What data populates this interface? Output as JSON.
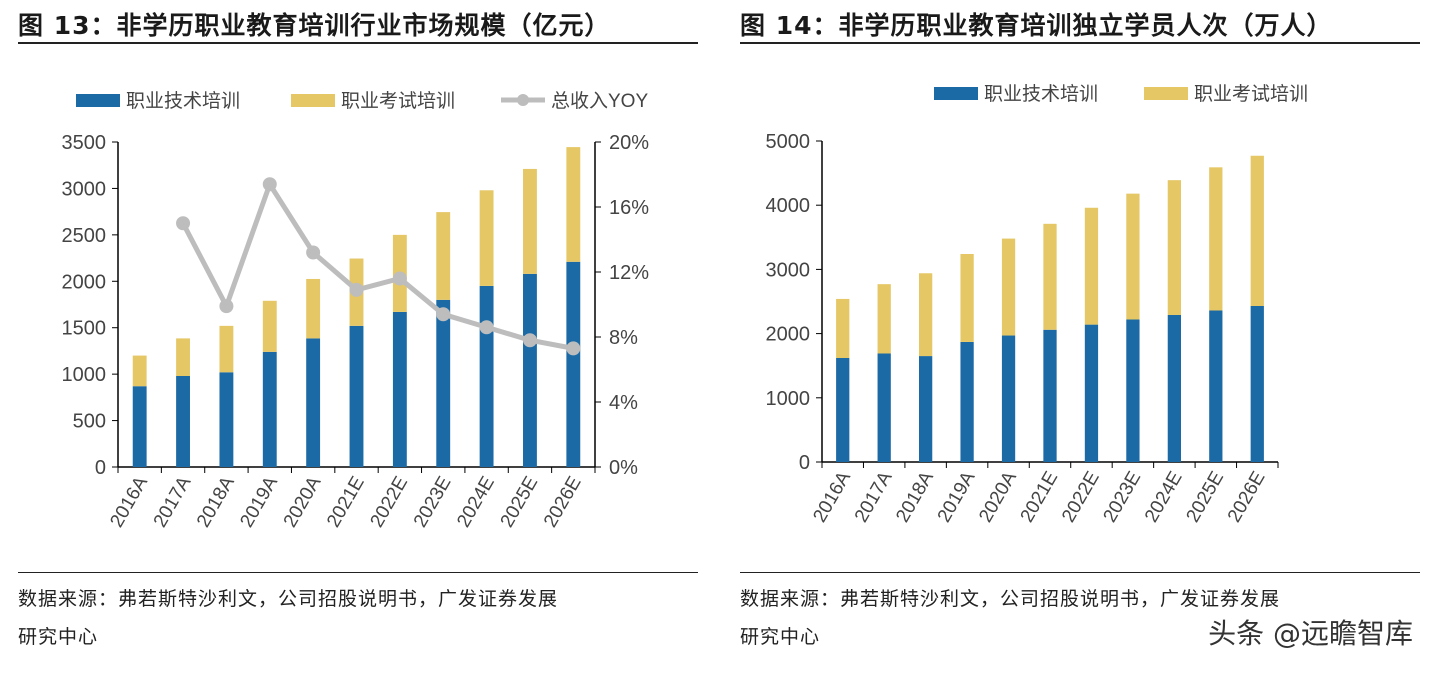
{
  "charts_meta": {
    "left_title": "图 13：非学历职业教育培训行业市场规模（亿元）",
    "right_title": "图 14：非学历职业教育培训独立学员人次（万人）",
    "source_line1": "数据来源：弗若斯特沙利文，公司招股说明书，广发证券发展",
    "source_line2": "研究中心",
    "watermark": "头条 @远瞻智库"
  },
  "colors": {
    "tech": "#1B6AA5",
    "exam": "#E5C766",
    "yoy": "#BDBDBD"
  },
  "chart_data": [
    {
      "type": "bar",
      "stacked": true,
      "title": "图 13：非学历职业教育培训行业市场规模（亿元）",
      "categories": [
        "2016A",
        "2017A",
        "2018A",
        "2019A",
        "2020A",
        "2021E",
        "2022E",
        "2023E",
        "2024E",
        "2025E",
        "2026E"
      ],
      "series": [
        {
          "name": "职业技术培训",
          "values": [
            870,
            980,
            1020,
            1240,
            1385,
            1520,
            1670,
            1800,
            1950,
            2080,
            2210
          ]
        },
        {
          "name": "职业考试培训",
          "values": [
            330,
            405,
            500,
            550,
            640,
            725,
            830,
            945,
            1030,
            1130,
            1235
          ]
        },
        {
          "name": "总收入YOY",
          "type": "line",
          "axis": "right",
          "values": [
            null,
            15.0,
            9.9,
            17.4,
            13.2,
            10.9,
            11.6,
            9.4,
            8.6,
            7.8,
            7.3
          ]
        }
      ],
      "ylim": [
        0,
        3500
      ],
      "yticks": [
        0,
        500,
        1000,
        1500,
        2000,
        2500,
        3000,
        3500
      ],
      "y2lim": [
        0,
        20
      ],
      "y2ticks": [
        "0%",
        "4%",
        "8%",
        "12%",
        "16%",
        "20%"
      ],
      "legend": "top",
      "grid": false
    },
    {
      "type": "bar",
      "stacked": true,
      "title": "图 14：非学历职业教育培训独立学员人次（万人）",
      "categories": [
        "2016A",
        "2017A",
        "2018A",
        "2019A",
        "2020A",
        "2021E",
        "2022E",
        "2023E",
        "2024E",
        "2025E",
        "2026E"
      ],
      "series": [
        {
          "name": "职业技术培训",
          "values": [
            1620,
            1690,
            1650,
            1870,
            1970,
            2060,
            2140,
            2220,
            2290,
            2360,
            2430
          ]
        },
        {
          "name": "职业考试培训",
          "values": [
            920,
            1080,
            1290,
            1370,
            1510,
            1650,
            1820,
            1960,
            2100,
            2230,
            2340
          ]
        }
      ],
      "ylim": [
        0,
        5000
      ],
      "yticks": [
        0,
        1000,
        2000,
        3000,
        4000,
        5000
      ],
      "legend": "top",
      "grid": false
    }
  ]
}
